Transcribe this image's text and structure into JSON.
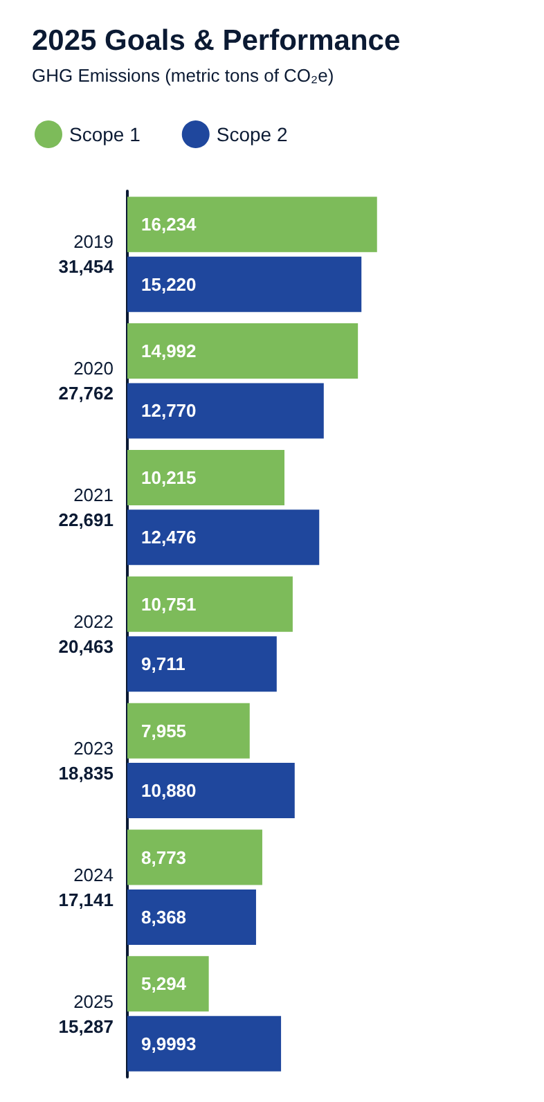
{
  "chart_data": {
    "type": "bar",
    "orientation": "horizontal",
    "title": "2025 Goals & Performance",
    "subtitle": "GHG Emissions (metric tons of CO₂e)",
    "categories": [
      "2019",
      "2020",
      "2021",
      "2022",
      "2023",
      "2024",
      "2025"
    ],
    "totals": [
      "31,454",
      "27,762",
      "22,691",
      "20,463",
      "18,835",
      "17,141",
      "15,287"
    ],
    "series": [
      {
        "name": "Scope 1",
        "color": "#7dbb5a",
        "values": [
          16234,
          14992,
          10215,
          10751,
          7955,
          8773,
          5294
        ],
        "value_labels": [
          "16,234",
          "14,992",
          "10,215",
          "10,751",
          "7,955",
          "8,773",
          "5,294"
        ]
      },
      {
        "name": "Scope 2",
        "color": "#1f479d",
        "values": [
          15220,
          12770,
          12476,
          9711,
          10880,
          8368,
          9993
        ],
        "value_labels": [
          "15,220",
          "12,770",
          "12,476",
          "9,711",
          "10,880",
          "8,368",
          "9,9993"
        ]
      }
    ],
    "legend": "top left",
    "grid": false
  }
}
